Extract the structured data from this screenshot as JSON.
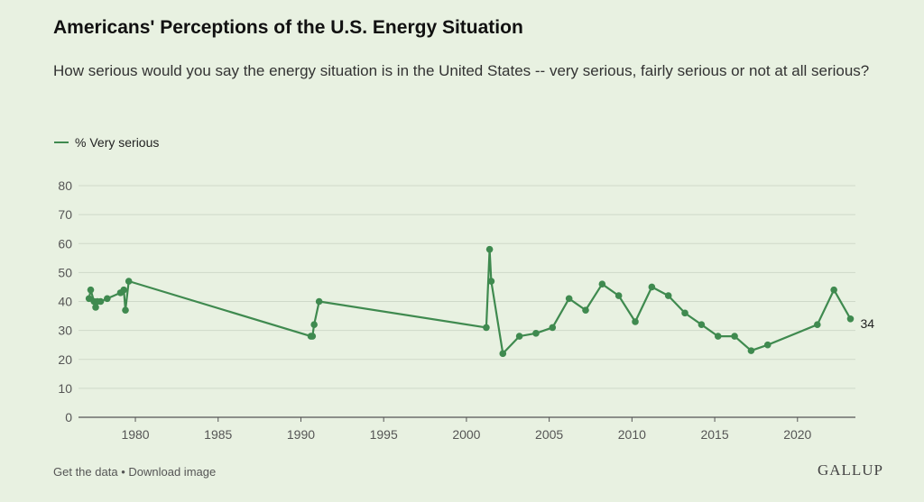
{
  "title": "Americans' Perceptions of the U.S. Energy Situation",
  "subtitle": "How serious would you say the energy situation is in the United States -- very serious, fairly serious or not at all serious?",
  "colors": {
    "series": "#3f8a4f",
    "grid": "#cfd9c9",
    "axis": "#555555"
  },
  "footer": {
    "get_data": "Get the data",
    "separator": "•",
    "download": "Download image"
  },
  "brand": "GALLUP",
  "chart_data": {
    "type": "line",
    "title": "",
    "xlabel": "",
    "ylabel": "",
    "xlim": [
      1977,
      2023.5
    ],
    "ylim": [
      0,
      80
    ],
    "yticks": [
      0,
      10,
      20,
      30,
      40,
      50,
      60,
      70,
      80
    ],
    "xticks": [
      1980,
      1985,
      1990,
      1995,
      2000,
      2005,
      2010,
      2015,
      2020
    ],
    "grid": true,
    "legend": "top-left",
    "end_label": "34",
    "series": [
      {
        "name": "% Very serious",
        "x": [
          1977.2,
          1977.3,
          1977.5,
          1977.6,
          1977.7,
          1977.9,
          1978.3,
          1979.1,
          1979.3,
          1979.4,
          1979.6,
          1990.6,
          1990.7,
          1990.8,
          1991.1,
          2001.2,
          2001.4,
          2001.5,
          2002.2,
          2003.2,
          2004.2,
          2005.2,
          2006.2,
          2007.2,
          2008.2,
          2009.2,
          2010.2,
          2011.2,
          2012.2,
          2013.2,
          2014.2,
          2015.2,
          2016.2,
          2017.2,
          2018.2,
          2021.2,
          2022.2,
          2023.2
        ],
        "values": [
          41,
          44,
          40,
          38,
          40,
          40,
          41,
          43,
          44,
          37,
          47,
          28,
          28,
          32,
          40,
          31,
          58,
          47,
          22,
          28,
          29,
          31,
          41,
          37,
          46,
          42,
          33,
          45,
          42,
          36,
          32,
          28,
          28,
          23,
          25,
          32,
          44,
          34
        ]
      }
    ]
  }
}
